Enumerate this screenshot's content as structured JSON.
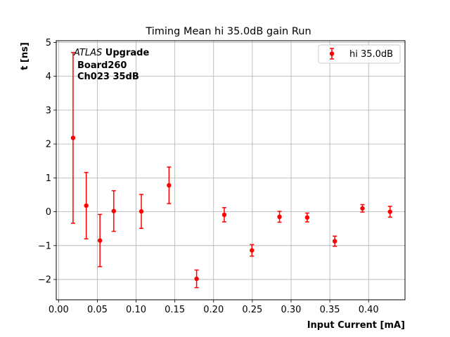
{
  "chart_data": {
    "type": "scatter",
    "title": "Timing Mean hi 35.0dB gain Run",
    "xlabel": "Input Current [mA]",
    "ylabel": "t [ns]",
    "xlim": [
      -0.003,
      0.447
    ],
    "ylim": [
      -2.6,
      5.05
    ],
    "xticks": [
      "0.00",
      "0.05",
      "0.10",
      "0.15",
      "0.20",
      "0.25",
      "0.30",
      "0.35",
      "0.40"
    ],
    "xtick_values": [
      0.0,
      0.05,
      0.1,
      0.15,
      0.2,
      0.25,
      0.3,
      0.35,
      0.4
    ],
    "yticks": [
      "−2",
      "−1",
      "0",
      "1",
      "2",
      "3",
      "4",
      "5"
    ],
    "ytick_values": [
      -2,
      -1,
      0,
      1,
      2,
      3,
      4,
      5
    ],
    "grid": true,
    "legend_position": "top-right",
    "annotation": {
      "line1_italic": "ATLAS",
      "line1_bold": " Upgrade",
      "line2": "Board260",
      "line3": "Ch023 35dB"
    },
    "series": [
      {
        "name": "hi 35.0dB",
        "color": "#ff0000",
        "marker": "circle",
        "x": [
          0.0187,
          0.0357,
          0.0534,
          0.0712,
          0.1068,
          0.1425,
          0.1781,
          0.2138,
          0.2495,
          0.2851,
          0.3208,
          0.3564,
          0.3921,
          0.4277
        ],
        "y": [
          2.18,
          0.18,
          -0.85,
          0.02,
          0.01,
          0.78,
          -1.98,
          -0.09,
          -1.14,
          -0.15,
          -0.17,
          -0.87,
          0.1,
          0.0
        ],
        "err": [
          2.52,
          0.98,
          0.77,
          0.6,
          0.5,
          0.54,
          0.26,
          0.21,
          0.17,
          0.16,
          0.13,
          0.15,
          0.11,
          0.16
        ]
      }
    ]
  }
}
